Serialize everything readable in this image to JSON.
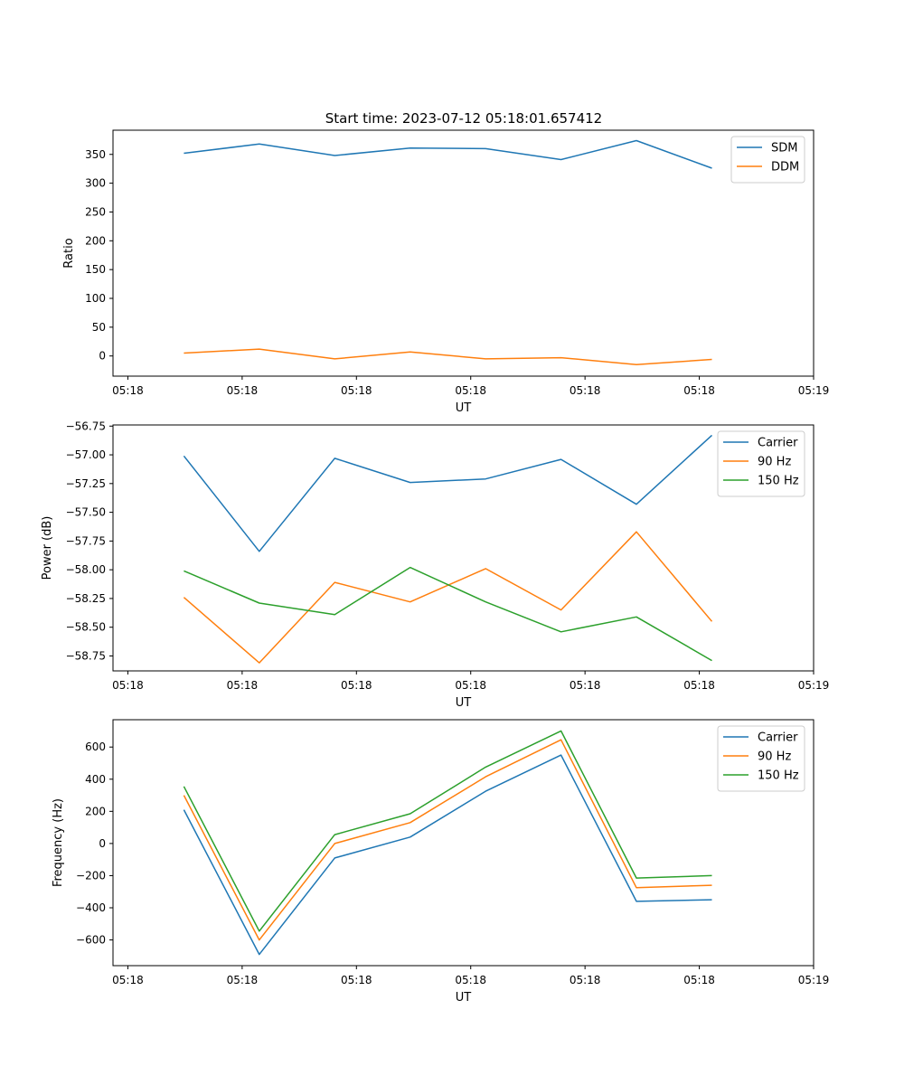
{
  "figure": {
    "title": "Start time: 2023-07-12 05:18:01.657412"
  },
  "chart_data": [
    {
      "type": "line",
      "xlabel": "UT",
      "ylabel": "Ratio",
      "x_ticks": [
        0,
        1,
        2,
        3,
        4,
        5,
        6
      ],
      "x_tick_labels": [
        "05:18",
        "05:18",
        "05:18",
        "05:18",
        "05:18",
        "05:18",
        "05:19"
      ],
      "xlim": [
        -0.13,
        6.0
      ],
      "ylim": [
        -35,
        392
      ],
      "y_ticks": [
        0,
        50,
        100,
        150,
        200,
        250,
        300,
        350
      ],
      "y_tick_labels": [
        "0",
        "50",
        "100",
        "150",
        "200",
        "250",
        "300",
        "350"
      ],
      "x": [
        0.49,
        1.15,
        1.81,
        2.47,
        3.13,
        3.79,
        4.45,
        5.11
      ],
      "legend": "top-right",
      "series": [
        {
          "name": "SDM",
          "color": "#1f77b4",
          "values": [
            352,
            368,
            348,
            361,
            360,
            341,
            374,
            326
          ]
        },
        {
          "name": "DDM",
          "color": "#ff7f0e",
          "values": [
            5,
            12,
            -5,
            7,
            -5,
            -3,
            -15,
            -6
          ]
        }
      ]
    },
    {
      "type": "line",
      "xlabel": "UT",
      "ylabel": "Power (dB)",
      "x_ticks": [
        0,
        1,
        2,
        3,
        4,
        5,
        6
      ],
      "x_tick_labels": [
        "05:18",
        "05:18",
        "05:18",
        "05:18",
        "05:18",
        "05:18",
        "05:19"
      ],
      "xlim": [
        -0.13,
        6.0
      ],
      "ylim": [
        -58.88,
        -56.74
      ],
      "y_ticks": [
        -58.75,
        -58.5,
        -58.25,
        -58.0,
        -57.75,
        -57.5,
        -57.25,
        -57.0,
        -56.75
      ],
      "y_tick_labels": [
        "−58.75",
        "−58.50",
        "−58.25",
        "−58.00",
        "−57.75",
        "−57.50",
        "−57.25",
        "−57.00",
        "−56.75"
      ],
      "x": [
        0.49,
        1.15,
        1.81,
        2.47,
        3.13,
        3.79,
        4.45,
        5.11
      ],
      "legend": "top-right",
      "series": [
        {
          "name": "Carrier",
          "color": "#1f77b4",
          "values": [
            -57.01,
            -57.84,
            -57.03,
            -57.24,
            -57.21,
            -57.04,
            -57.43,
            -56.83
          ]
        },
        {
          "name": "90 Hz",
          "color": "#ff7f0e",
          "values": [
            -58.24,
            -58.81,
            -58.11,
            -58.28,
            -57.99,
            -58.35,
            -57.67,
            -58.45
          ]
        },
        {
          "name": "150 Hz",
          "color": "#2ca02c",
          "values": [
            -58.01,
            -58.29,
            -58.39,
            -57.98,
            -58.28,
            -58.54,
            -58.41,
            -58.79
          ]
        }
      ]
    },
    {
      "type": "line",
      "xlabel": "UT",
      "ylabel": "Frequency (Hz)",
      "x_ticks": [
        0,
        1,
        2,
        3,
        4,
        5,
        6
      ],
      "x_tick_labels": [
        "05:18",
        "05:18",
        "05:18",
        "05:18",
        "05:18",
        "05:18",
        "05:19"
      ],
      "xlim": [
        -0.13,
        6.0
      ],
      "ylim": [
        -760,
        770
      ],
      "y_ticks": [
        -600,
        -400,
        -200,
        0,
        200,
        400,
        600
      ],
      "y_tick_labels": [
        "−600",
        "−400",
        "−200",
        "0",
        "200",
        "400",
        "600"
      ],
      "x": [
        0.49,
        1.15,
        1.81,
        2.47,
        3.13,
        3.79,
        4.45,
        5.11
      ],
      "legend": "top-right",
      "series": [
        {
          "name": "Carrier",
          "color": "#1f77b4",
          "values": [
            210,
            -690,
            -90,
            40,
            325,
            550,
            -360,
            -350
          ]
        },
        {
          "name": "90 Hz",
          "color": "#ff7f0e",
          "values": [
            300,
            -600,
            0,
            130,
            415,
            645,
            -275,
            -260
          ]
        },
        {
          "name": "150 Hz",
          "color": "#2ca02c",
          "values": [
            355,
            -545,
            55,
            185,
            475,
            700,
            -215,
            -200
          ]
        }
      ]
    }
  ]
}
